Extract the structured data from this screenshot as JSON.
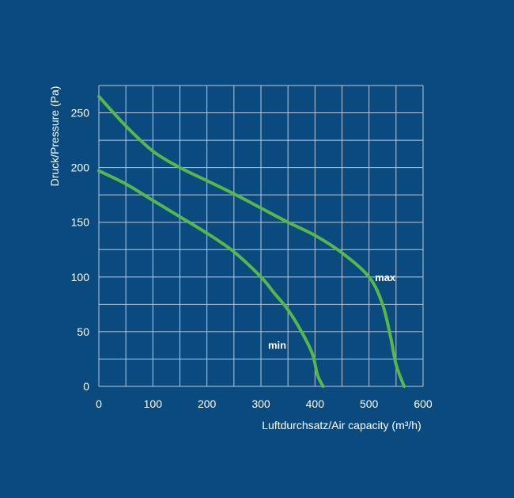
{
  "chart_data": {
    "type": "line",
    "title": "",
    "xlabel": "Luftdurchsatz/Air capacity (m³/h)",
    "ylabel": "Druck/Pressure (Pa)",
    "xlim": [
      0,
      600
    ],
    "ylim": [
      0,
      275
    ],
    "x_ticks": [
      0,
      100,
      200,
      300,
      400,
      500,
      600
    ],
    "y_ticks": [
      0,
      50,
      100,
      150,
      200,
      250
    ],
    "grid": true,
    "legend": "none",
    "series": [
      {
        "name": "max",
        "color": "#55b848",
        "points": [
          [
            0,
            265
          ],
          [
            50,
            238
          ],
          [
            100,
            215
          ],
          [
            150,
            200
          ],
          [
            200,
            188
          ],
          [
            250,
            176
          ],
          [
            300,
            163
          ],
          [
            350,
            150
          ],
          [
            400,
            138
          ],
          [
            450,
            122
          ],
          [
            500,
            100
          ],
          [
            525,
            75
          ],
          [
            540,
            45
          ],
          [
            550,
            20
          ],
          [
            565,
            0
          ]
        ]
      },
      {
        "name": "min",
        "color": "#55b848",
        "points": [
          [
            0,
            197
          ],
          [
            50,
            185
          ],
          [
            100,
            170
          ],
          [
            150,
            155
          ],
          [
            200,
            140
          ],
          [
            250,
            123
          ],
          [
            300,
            100
          ],
          [
            325,
            85
          ],
          [
            350,
            70
          ],
          [
            375,
            50
          ],
          [
            395,
            30
          ],
          [
            405,
            10
          ],
          [
            415,
            0
          ]
        ]
      }
    ],
    "annotations": [
      {
        "text": "max",
        "x": 530,
        "y": 100
      },
      {
        "text": "min",
        "x": 330,
        "y": 38
      }
    ]
  },
  "colors": {
    "background": "#0b4a7e",
    "grid": "#b9c9db",
    "text": "#ffffff",
    "curve": "#55b848"
  }
}
